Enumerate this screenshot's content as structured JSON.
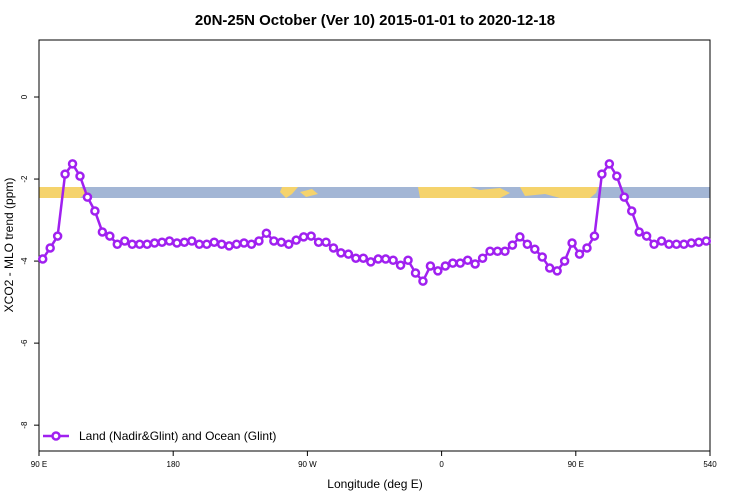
{
  "chart_data": {
    "type": "line",
    "title": "20N-25N October (Ver 10)   2015-01-01 to 2020-12-18",
    "x_label": "Longitude (deg E)",
    "y_label": "XCO2 - MLO trend (ppm)",
    "x": [
      92.5,
      97.5,
      102.5,
      107.5,
      112.5,
      117.5,
      122.5,
      127.5,
      132.5,
      137.5,
      142.5,
      147.5,
      152.5,
      157.5,
      162.5,
      167.5,
      172.5,
      177.5,
      182.5,
      187.5,
      192.5,
      197.5,
      202.5,
      207.5,
      212.5,
      217.5,
      222.5,
      227.5,
      232.5,
      237.5,
      242.5,
      247.5,
      252.5,
      257.5,
      262.5,
      267.5,
      272.5,
      277.5,
      282.5,
      287.5,
      292.5,
      297.5,
      302.5,
      307.5,
      312.5,
      317.5,
      322.5,
      327.5,
      332.5,
      337.5,
      342.5,
      347.5,
      352.5,
      357.5,
      362.5,
      367.5,
      372.5,
      377.5,
      382.5,
      387.5,
      392.5,
      397.5,
      402.5,
      407.5,
      412.5,
      417.5,
      422.5,
      427.5,
      432.5,
      437.5,
      442.5,
      447.5,
      452.5,
      457.5,
      462.5,
      467.5,
      472.5,
      477.5,
      482.5,
      487.5,
      492.5,
      497.5,
      502.5,
      507.5,
      512.5,
      517.5,
      522.5,
      527.5,
      532.5,
      537.5
    ],
    "series": [
      {
        "name": "Land (Nadir&Glint) and Ocean (Glint)",
        "color": "#a020f0",
        "values": [
          -3.95,
          -3.68,
          -3.39,
          -1.88,
          -1.63,
          -1.93,
          -2.44,
          -2.78,
          -3.29,
          -3.39,
          -3.59,
          -3.51,
          -3.59,
          -3.59,
          -3.59,
          -3.56,
          -3.54,
          -3.51,
          -3.56,
          -3.54,
          -3.51,
          -3.59,
          -3.59,
          -3.54,
          -3.59,
          -3.63,
          -3.59,
          -3.56,
          -3.59,
          -3.51,
          -3.32,
          -3.51,
          -3.54,
          -3.59,
          -3.49,
          -3.41,
          -3.39,
          -3.54,
          -3.54,
          -3.68,
          -3.8,
          -3.83,
          -3.93,
          -3.93,
          -4.02,
          -3.95,
          -3.95,
          -3.98,
          -4.1,
          -3.98,
          -4.29,
          -4.49,
          -4.12,
          -4.24,
          -4.12,
          -4.05,
          -4.05,
          -3.98,
          -4.07,
          -3.93,
          -3.76,
          -3.76,
          -3.76,
          -3.61,
          -3.41,
          -3.59,
          -3.71,
          -3.9,
          -4.17,
          -4.24,
          -4.0,
          -3.56,
          -3.83,
          -3.68,
          -3.39,
          -1.88,
          -1.63,
          -1.93,
          -2.44,
          -2.78,
          -3.29,
          -3.39,
          -3.59,
          -3.51,
          -3.59,
          -3.59,
          -3.59,
          -3.56,
          -3.54,
          -3.51
        ]
      }
    ],
    "xlim": [
      90,
      540
    ],
    "xticks": [
      {
        "value": 90,
        "label": "90 E"
      },
      180,
      {
        "value": 270,
        "label": "90 W"
      },
      {
        "value": 360,
        "label": "0"
      },
      {
        "value": 450,
        "label": "90 E"
      },
      540
    ],
    "ylim": [
      -8.63,
      1.39
    ],
    "yticks": [
      0,
      -2,
      -4,
      -6,
      -8
    ],
    "grid": false,
    "legend": "bottomleft"
  }
}
